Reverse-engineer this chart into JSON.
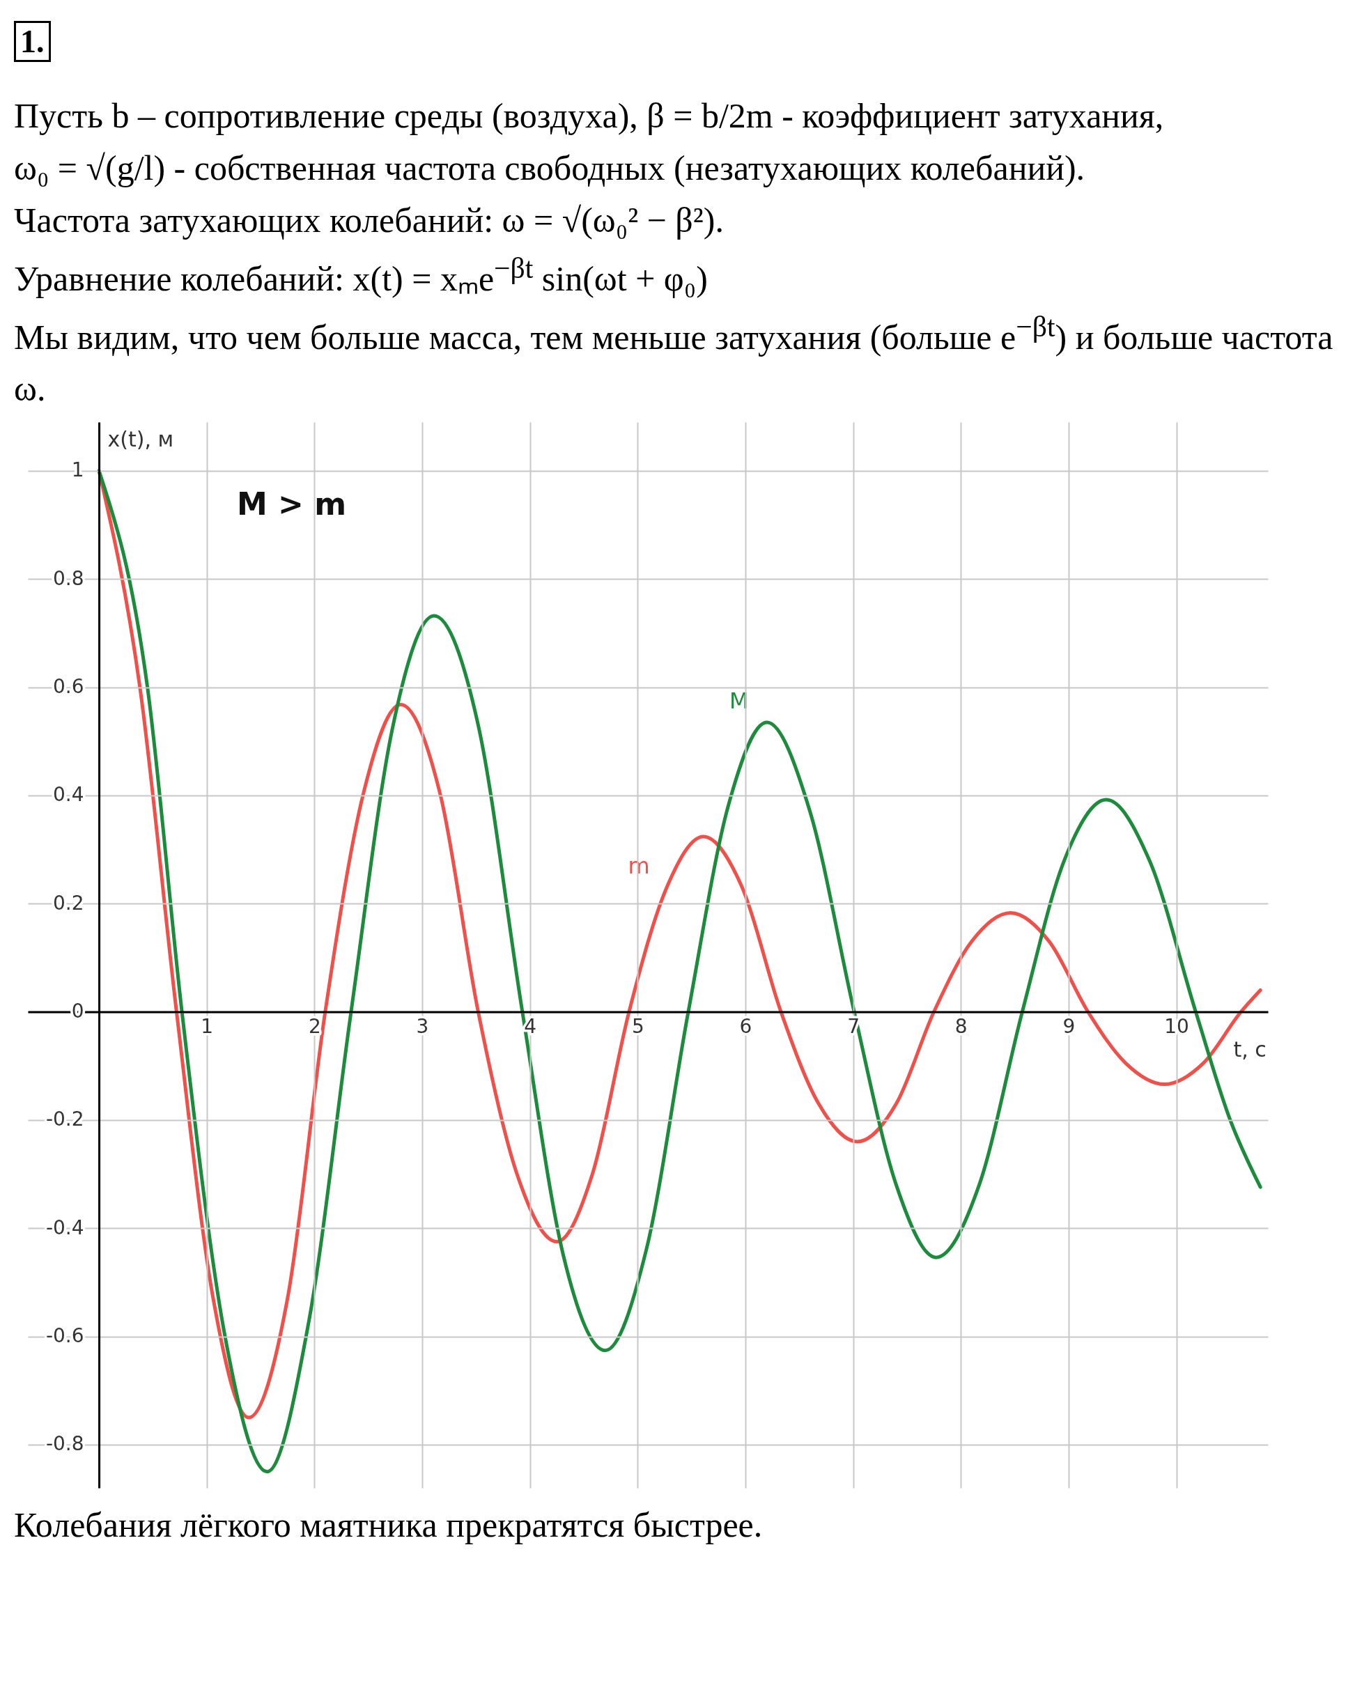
{
  "chart_data": {
    "type": "line",
    "title": "1.",
    "annotations": [
      "Пусть b – сопротивление среды (воздуха), β = b/2m - коэффициент затухания,",
      "ω₀ = √(g/l) - собственная частота свободных (незатухающих колебаний).",
      "Частота затухающих колебаний: ω = √(ω₀² − β²).",
      "Уравнение колебаний: x(t) = xₘe$^{−βt}$ sin(ωt + φ₀)",
      "Мы видим, что чем больше масса, тем меньше затухания (больше e$^{−βt}$) и больше частота ω.",
      "M > m",
      "Колебания лёгкого маятника прекратятся быстрее."
    ],
    "xlabel": "t, c",
    "ylabel": "x(t), м",
    "xlim": [
      -0.66,
      10.85
    ],
    "ylim": [
      -0.88,
      1.09
    ],
    "xticks": [
      {
        "value": 0,
        "label": null
      },
      1,
      2,
      3,
      4,
      5,
      6,
      7,
      8,
      9,
      10
    ],
    "yticks": [
      -0.8,
      -0.6,
      -0.4,
      -0.2,
      0,
      0.2,
      0.4,
      0.6,
      0.8,
      1
    ],
    "grid": true,
    "legend": false,
    "marker": "none",
    "line_style": "solid",
    "series": [
      {
        "name": "m",
        "color": "#f0504a",
        "x": [
          0,
          0.38,
          0.72,
          1.06,
          1.39,
          1.75,
          2.1,
          2.45,
          2.8,
          3.17,
          3.52,
          3.88,
          4.25,
          4.58,
          4.92,
          5.27,
          5.61,
          5.97,
          6.33,
          6.68,
          7.04,
          7.4,
          7.75,
          8.1,
          8.46,
          8.82,
          9.18,
          9.53,
          9.89,
          10.25,
          10.6,
          10.78
        ],
        "values": [
          1,
          0.6,
          0,
          -0.53,
          -0.75,
          -0.53,
          0,
          0.4,
          0.568,
          0.4,
          0,
          -0.3,
          -0.425,
          -0.3,
          0,
          0.23,
          0.324,
          0.23,
          0,
          -0.17,
          -0.24,
          -0.17,
          0,
          0.13,
          0.183,
          0.13,
          0,
          -0.095,
          -0.134,
          -0.095,
          0,
          0.04
        ]
      },
      {
        "name": "M",
        "color": "#1c8c3c",
        "x": [
          0,
          0.45,
          0.77,
          1.17,
          1.56,
          1.95,
          2.34,
          2.72,
          3.11,
          3.52,
          3.93,
          4.31,
          4.7,
          5.08,
          5.47,
          5.84,
          6.2,
          6.6,
          7.01,
          7.4,
          7.77,
          8.17,
          8.57,
          8.96,
          9.35,
          9.75,
          10.18,
          10.5,
          10.78
        ],
        "values": [
          1,
          0.6,
          0,
          -0.6,
          -0.85,
          -0.57,
          0,
          0.52,
          0.732,
          0.53,
          0,
          -0.45,
          -0.626,
          -0.44,
          0,
          0.38,
          0.535,
          0.37,
          0,
          -0.32,
          -0.454,
          -0.32,
          0,
          0.28,
          0.392,
          0.28,
          0,
          -0.2,
          -0.324
        ]
      }
    ]
  }
}
